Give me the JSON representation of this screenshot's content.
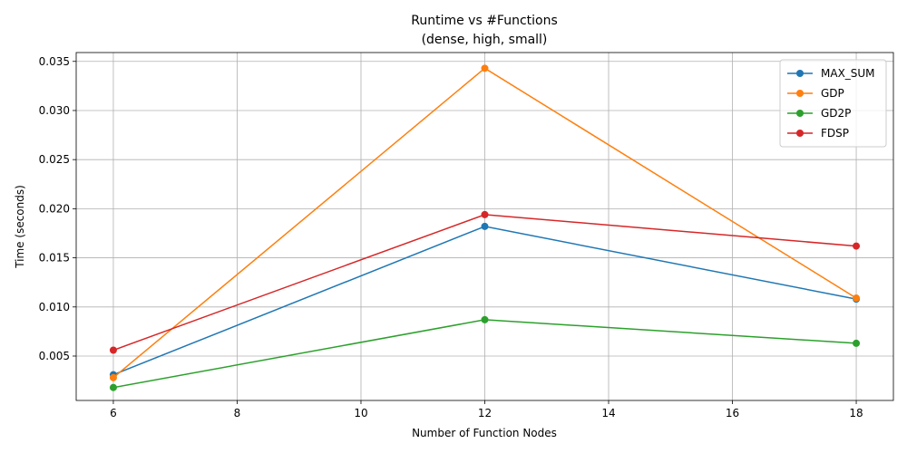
{
  "chart_data": {
    "type": "line",
    "title": "Runtime vs #Functions",
    "subtitle": "(dense, high, small)",
    "xlabel": "Number of Function Nodes",
    "ylabel": "Time (seconds)",
    "xlim": [
      5.4,
      18.6
    ],
    "ylim": [
      0.00048,
      0.0359
    ],
    "xticks": [
      6,
      8,
      10,
      12,
      14,
      16,
      18
    ],
    "xtick_labels": [
      "6",
      "8",
      "10",
      "12",
      "14",
      "16",
      "18"
    ],
    "yticks": [
      0.005,
      0.01,
      0.015,
      0.02,
      0.025,
      0.03,
      0.035
    ],
    "ytick_labels": [
      "0.005",
      "0.010",
      "0.015",
      "0.020",
      "0.025",
      "0.030",
      "0.035"
    ],
    "grid": true,
    "legend_position": "top-right",
    "x": [
      6,
      12,
      18
    ],
    "series": [
      {
        "name": "MAX_SUM",
        "color": "#1f77b4",
        "values": [
          0.0031,
          0.0182,
          0.0108
        ]
      },
      {
        "name": "GDP",
        "color": "#ff7f0e",
        "values": [
          0.0028,
          0.0343,
          0.0109
        ]
      },
      {
        "name": "GD2P",
        "color": "#2ca02c",
        "values": [
          0.0018,
          0.0087,
          0.0063
        ]
      },
      {
        "name": "FDSP",
        "color": "#d62728",
        "values": [
          0.0056,
          0.0194,
          0.0162
        ]
      }
    ]
  }
}
